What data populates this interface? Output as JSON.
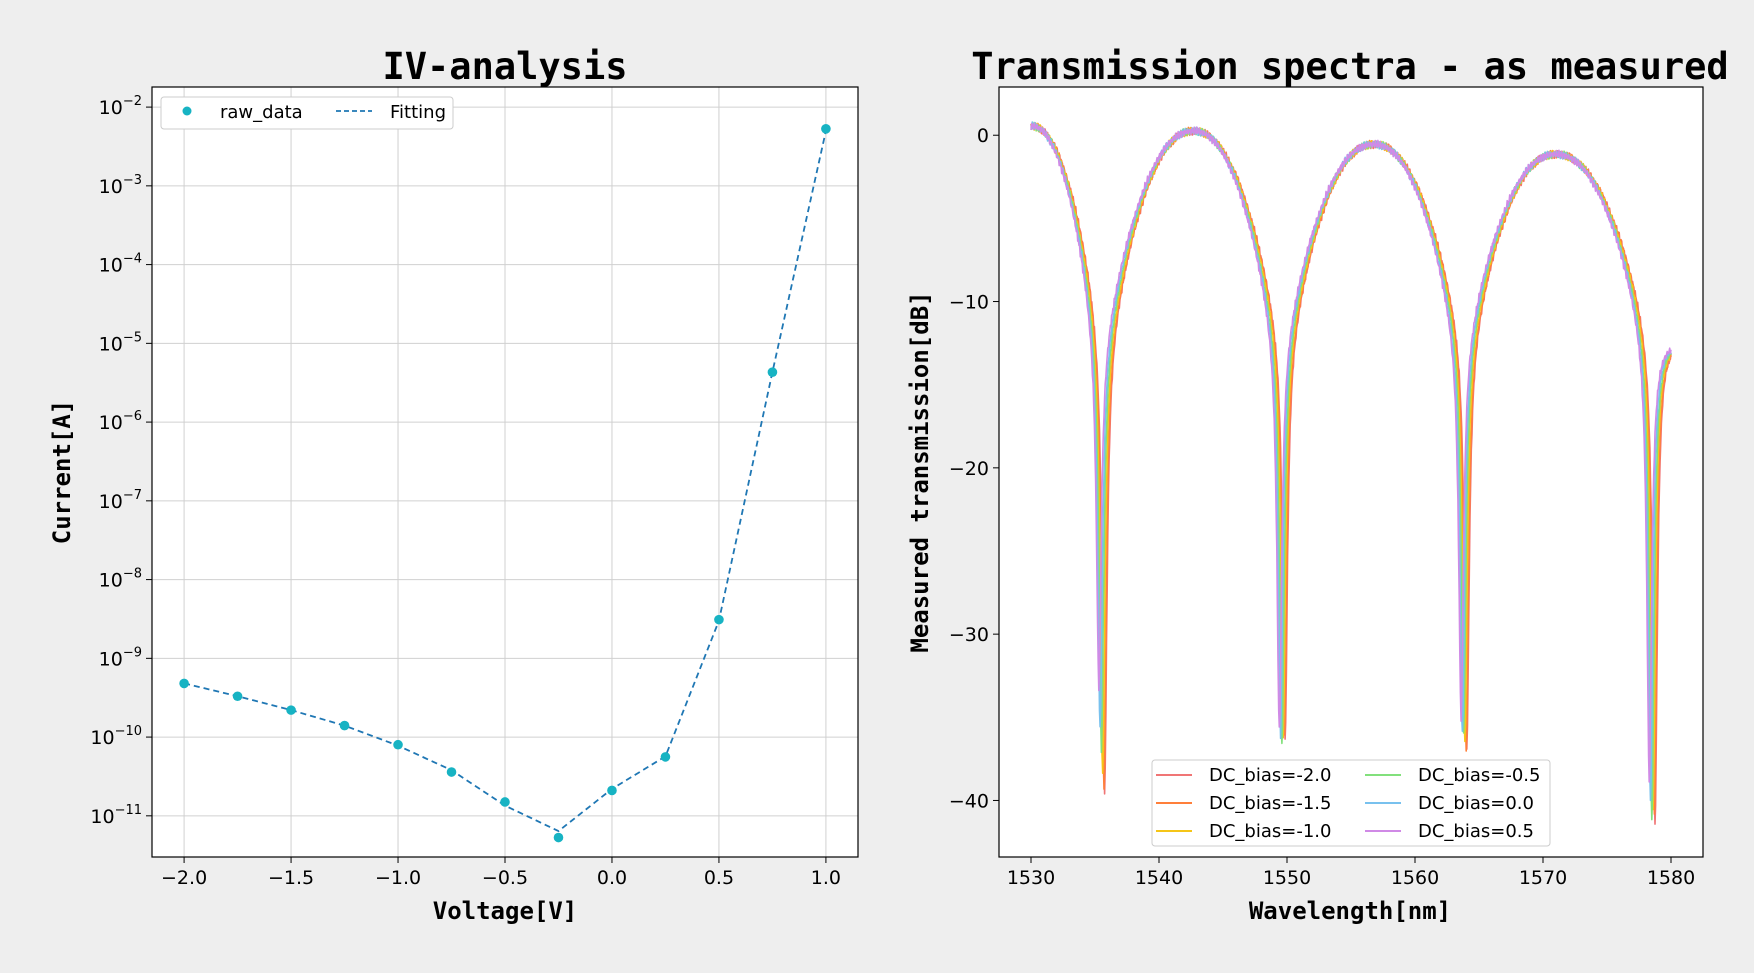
{
  "colors": {
    "background": "#eeeeee",
    "plot_bg": "#ffffff",
    "raw_marker": "#17b3c3",
    "fit_line": "#1f77b4"
  },
  "chart_data": [
    {
      "type": "scatter",
      "title": "IV-analysis",
      "xlabel": "Voltage[V]",
      "ylabel": "Current[A]",
      "xlim": [
        -2.15,
        1.15
      ],
      "ylim": [
        3e-12,
        0.018
      ],
      "yscale": "log",
      "grid": true,
      "legend": "top-left",
      "x_ticks": [
        -2.0,
        -1.5,
        -1.0,
        -0.5,
        0.0,
        0.5,
        1.0
      ],
      "x_tick_labels": [
        "−2.0",
        "−1.5",
        "−1.0",
        "−0.5",
        "0.0",
        "0.5",
        "1.0"
      ],
      "y_tick_exponents": [
        -11,
        -10,
        -9,
        -8,
        -7,
        -6,
        -5,
        -4,
        -3,
        -2
      ],
      "series": [
        {
          "name": "raw_data",
          "style": "markers",
          "x": [
            -2.0,
            -1.75,
            -1.5,
            -1.25,
            -1.0,
            -0.75,
            -0.5,
            -0.25,
            0.0,
            0.25,
            0.5,
            0.75,
            1.0
          ],
          "y": [
            4.8e-10,
            3.3e-10,
            2.2e-10,
            1.4e-10,
            8e-11,
            3.6e-11,
            1.5e-11,
            5.3e-12,
            2.1e-11,
            5.6e-11,
            3.1e-09,
            4.3e-06,
            0.0053
          ]
        },
        {
          "name": "Fitting",
          "style": "dashed",
          "x": [
            -2.0,
            -1.75,
            -1.5,
            -1.25,
            -1.0,
            -0.75,
            -0.5,
            -0.25,
            0.0,
            0.25,
            0.5,
            0.75,
            1.0
          ],
          "y": [
            4.8e-10,
            3.3e-10,
            2.2e-10,
            1.4e-10,
            7.8e-11,
            3.8e-11,
            1.35e-11,
            6.4e-12,
            2.2e-11,
            5.7e-11,
            3e-09,
            4.3e-06,
            0.005
          ]
        }
      ]
    },
    {
      "type": "line",
      "title": "Transmission spectra - as measured",
      "xlabel": "Wavelength[nm]",
      "ylabel": "Measured transmission[dB]",
      "xlim": [
        1527.5,
        1582.5
      ],
      "ylim": [
        -43.4,
        2.9
      ],
      "grid": false,
      "legend": "bottom-center",
      "x_ticks": [
        1530,
        1540,
        1550,
        1560,
        1570,
        1580
      ],
      "y_ticks": [
        0,
        -10,
        -20,
        -30,
        -40
      ],
      "y_tick_labels": [
        "0",
        "−10",
        "−20",
        "−30",
        "−40"
      ],
      "resonance_dips_nm": [
        1535.6,
        1549.7,
        1563.9,
        1578.6
      ],
      "series": [
        {
          "name": "DC_bias=-2.0",
          "color": "#f07575",
          "dip_shift_nm": 0.15,
          "dip_depth_db": [
            -39.5,
            -36.5,
            -36.8,
            -41.5
          ]
        },
        {
          "name": "DC_bias=-1.5",
          "color": "#ff7f3a",
          "dip_shift_nm": 0.1,
          "dip_depth_db": [
            -39.3,
            -36.2,
            -37.0,
            -41.0
          ]
        },
        {
          "name": "DC_bias=-1.0",
          "color": "#f5c518",
          "dip_shift_nm": 0.0,
          "dip_depth_db": [
            -38.4,
            -36.0,
            -36.5,
            -40.4
          ]
        },
        {
          "name": "DC_bias=-0.5",
          "color": "#82e07c",
          "dip_shift_nm": -0.1,
          "dip_depth_db": [
            -37.0,
            -36.8,
            -35.8,
            -41.2
          ]
        },
        {
          "name": "DC_bias=0.0",
          "color": "#78c1ee",
          "dip_shift_nm": -0.2,
          "dip_depth_db": [
            -35.7,
            -36.0,
            -36.0,
            -40.0
          ]
        },
        {
          "name": "DC_bias=0.5",
          "color": "#d08ae6",
          "dip_shift_nm": -0.3,
          "dip_depth_db": [
            -33.2,
            -35.8,
            -35.0,
            -38.8
          ]
        }
      ],
      "peaks_db": [
        {
          "x": 1530.0,
          "y": 0.6
        },
        {
          "x": 1542.7,
          "y": 0.3
        },
        {
          "x": 1556.8,
          "y": -0.5
        },
        {
          "x": 1571.0,
          "y": -1.1
        }
      ],
      "end_value_db": -12.5
    }
  ]
}
